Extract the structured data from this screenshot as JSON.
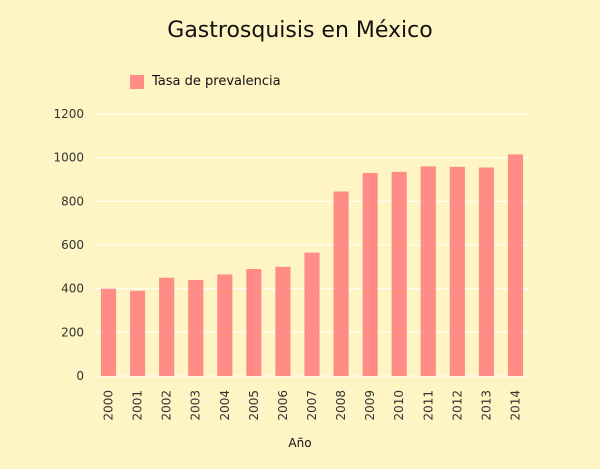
{
  "chart_data": {
    "type": "bar",
    "title": "Gastrosquisis en México",
    "xlabel": "Año",
    "ylabel": "",
    "ylim": [
      0,
      1200
    ],
    "yticks": [
      0,
      200,
      400,
      600,
      800,
      1000,
      1200
    ],
    "grid": true,
    "legend_position": "top-left",
    "categories": [
      "2000",
      "2001",
      "2002",
      "2003",
      "2004",
      "2005",
      "2006",
      "2007",
      "2008",
      "2009",
      "2010",
      "2011",
      "2012",
      "2013",
      "2014"
    ],
    "series": [
      {
        "name": "Tasa de prevalencia",
        "color": "#ff8c87",
        "values": [
          400,
          390,
          450,
          440,
          465,
          490,
          500,
          565,
          845,
          930,
          935,
          960,
          958,
          955,
          1015
        ]
      }
    ]
  }
}
